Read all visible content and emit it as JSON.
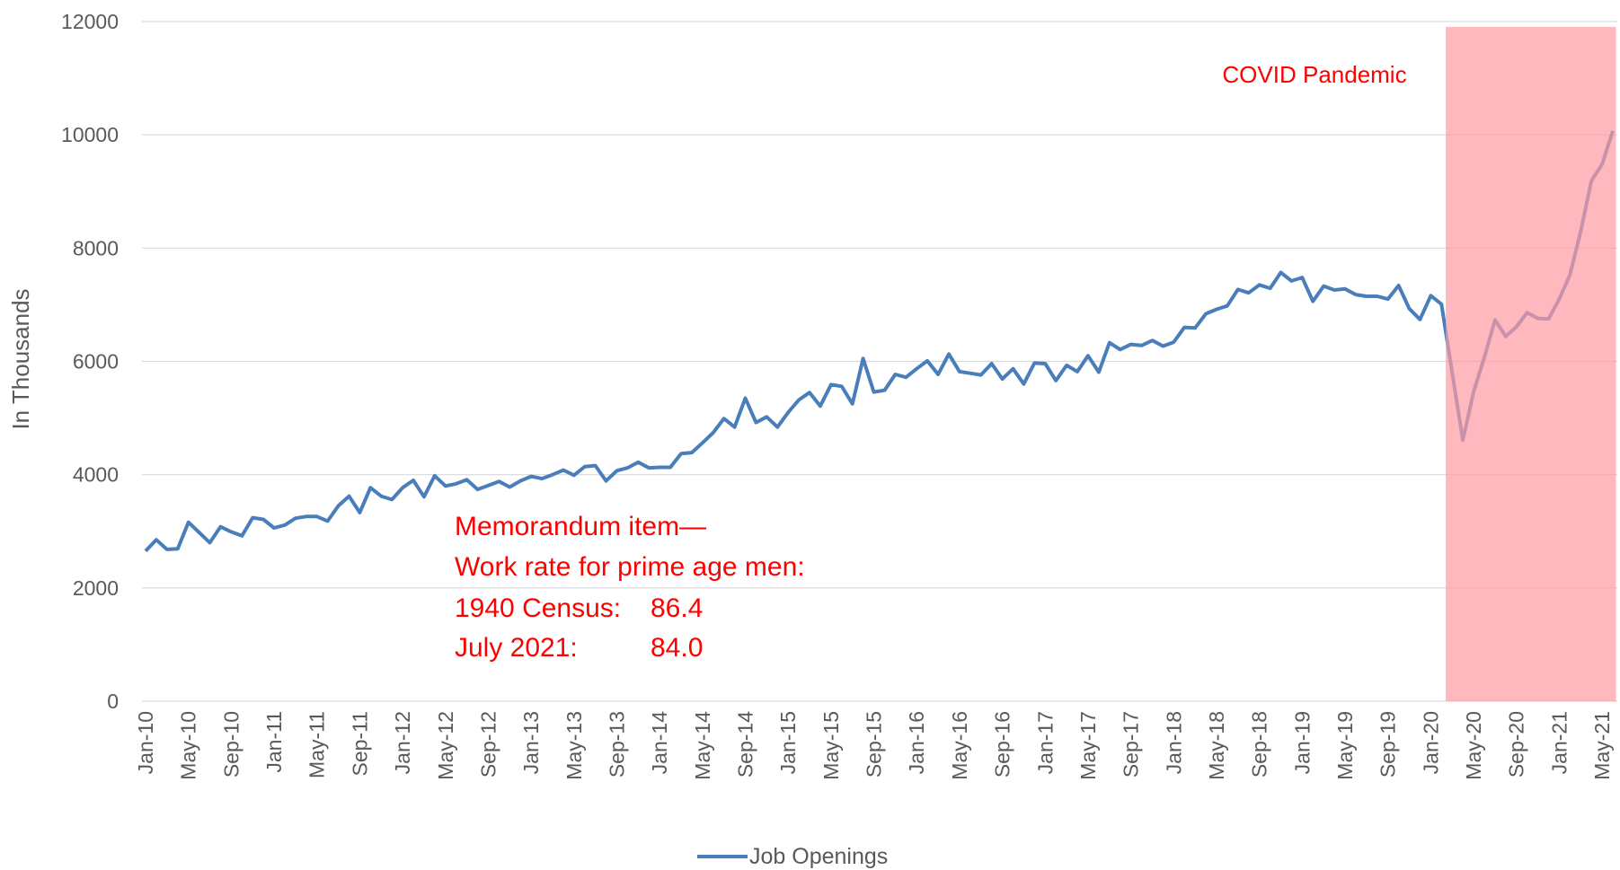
{
  "chart_data": {
    "type": "line",
    "y_label": "In Thousands",
    "categories": [
      "Jan-10",
      null,
      null,
      null,
      "May-10",
      null,
      null,
      null,
      "Sep-10",
      null,
      null,
      null,
      "Jan-11",
      null,
      null,
      null,
      "May-11",
      null,
      null,
      null,
      "Sep-11",
      null,
      null,
      null,
      "Jan-12",
      null,
      null,
      null,
      "May-12",
      null,
      null,
      null,
      "Sep-12",
      null,
      null,
      null,
      "Jan-13",
      null,
      null,
      null,
      "May-13",
      null,
      null,
      null,
      "Sep-13",
      null,
      null,
      null,
      "Jan-14",
      null,
      null,
      null,
      "May-14",
      null,
      null,
      null,
      "Sep-14",
      null,
      null,
      null,
      "Jan-15",
      null,
      null,
      null,
      "May-15",
      null,
      null,
      null,
      "Sep-15",
      null,
      null,
      null,
      "Jan-16",
      null,
      null,
      null,
      "May-16",
      null,
      null,
      null,
      "Sep-16",
      null,
      null,
      null,
      "Jan-17",
      null,
      null,
      null,
      "May-17",
      null,
      null,
      null,
      "Sep-17",
      null,
      null,
      null,
      "Jan-18",
      null,
      null,
      null,
      "May-18",
      null,
      null,
      null,
      "Sep-18",
      null,
      null,
      null,
      "Jan-19",
      null,
      null,
      null,
      "May-19",
      null,
      null,
      null,
      "Sep-19",
      null,
      null,
      null,
      "Jan-20",
      null,
      null,
      null,
      "May-20",
      null,
      null,
      null,
      "Sep-20",
      null,
      null,
      null,
      "Jan-21",
      null,
      null,
      null,
      "May-21",
      null
    ],
    "series": [
      {
        "name": "Job Openings",
        "color": "#4a7ebb",
        "values": [
          2650,
          2850,
          2680,
          2690,
          3160,
          2980,
          2800,
          3080,
          2990,
          2920,
          3240,
          3210,
          3060,
          3110,
          3230,
          3260,
          3260,
          3180,
          3450,
          3620,
          3330,
          3770,
          3620,
          3560,
          3770,
          3900,
          3610,
          3980,
          3800,
          3840,
          3910,
          3740,
          3810,
          3880,
          3780,
          3890,
          3970,
          3930,
          4000,
          4080,
          3990,
          4140,
          4160,
          3890,
          4070,
          4120,
          4220,
          4120,
          4130,
          4130,
          4370,
          4390,
          4560,
          4740,
          4990,
          4840,
          5350,
          4920,
          5020,
          4840,
          5100,
          5320,
          5450,
          5210,
          5590,
          5560,
          5250,
          6050,
          5460,
          5490,
          5770,
          5720,
          5870,
          6010,
          5770,
          6130,
          5820,
          5790,
          5760,
          5960,
          5690,
          5870,
          5600,
          5970,
          5960,
          5660,
          5930,
          5820,
          6100,
          5810,
          6330,
          6210,
          6300,
          6280,
          6370,
          6270,
          6340,
          6600,
          6590,
          6840,
          6920,
          6980,
          7270,
          7210,
          7350,
          7290,
          7570,
          7420,
          7480,
          7060,
          7330,
          7260,
          7280,
          7180,
          7150,
          7150,
          7100,
          7340,
          6930,
          6740,
          7160,
          7010,
          5800,
          4610,
          5460,
          6070,
          6730,
          6440,
          6610,
          6860,
          6760,
          6750,
          7100,
          7530,
          8290,
          9190,
          9480,
          10070
        ]
      }
    ],
    "ylim": [
      0,
      12000
    ],
    "yticks": [
      0,
      2000,
      4000,
      6000,
      8000,
      10000,
      12000
    ],
    "grid": true,
    "legend": "bottom",
    "highlight": {
      "label": "COVID Pandemic",
      "start_index": 122,
      "end_index": 137,
      "color": "#ff9aa2"
    },
    "memo": {
      "lines": [
        "Memorandum item—",
        "Work rate for prime age men:"
      ],
      "rows": [
        {
          "label": "1940 Census:",
          "value": "86.4"
        },
        {
          "label": "July 2021:",
          "value": "84.0"
        }
      ]
    }
  }
}
